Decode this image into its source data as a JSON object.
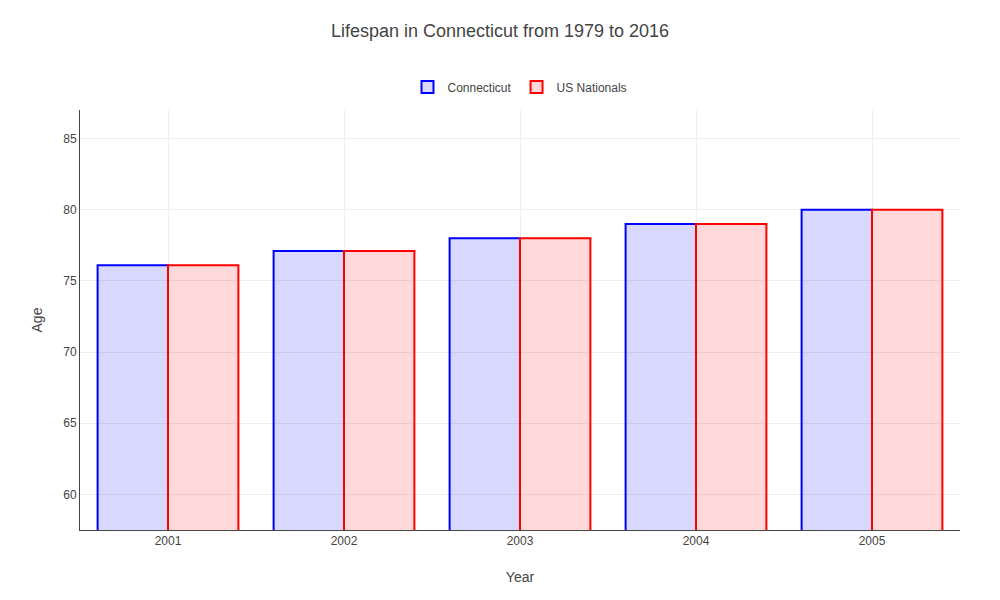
{
  "chart_data": {
    "type": "bar",
    "title": "Lifespan in Connecticut from 1979 to 2016",
    "xlabel": "Year",
    "ylabel": "Age",
    "categories": [
      "2001",
      "2002",
      "2003",
      "2004",
      "2005"
    ],
    "series": [
      {
        "name": "Connecticut",
        "color": "#0000ff",
        "values": [
          76.1,
          77.1,
          78.0,
          79.0,
          80.0
        ]
      },
      {
        "name": "US Nationals",
        "color": "#ff0000",
        "values": [
          76.1,
          77.1,
          78.0,
          79.0,
          80.0
        ]
      }
    ],
    "ylim": [
      57.5,
      87
    ],
    "yticks": [
      60,
      65,
      70,
      75,
      80,
      85
    ],
    "grid": true,
    "legend": "top"
  }
}
